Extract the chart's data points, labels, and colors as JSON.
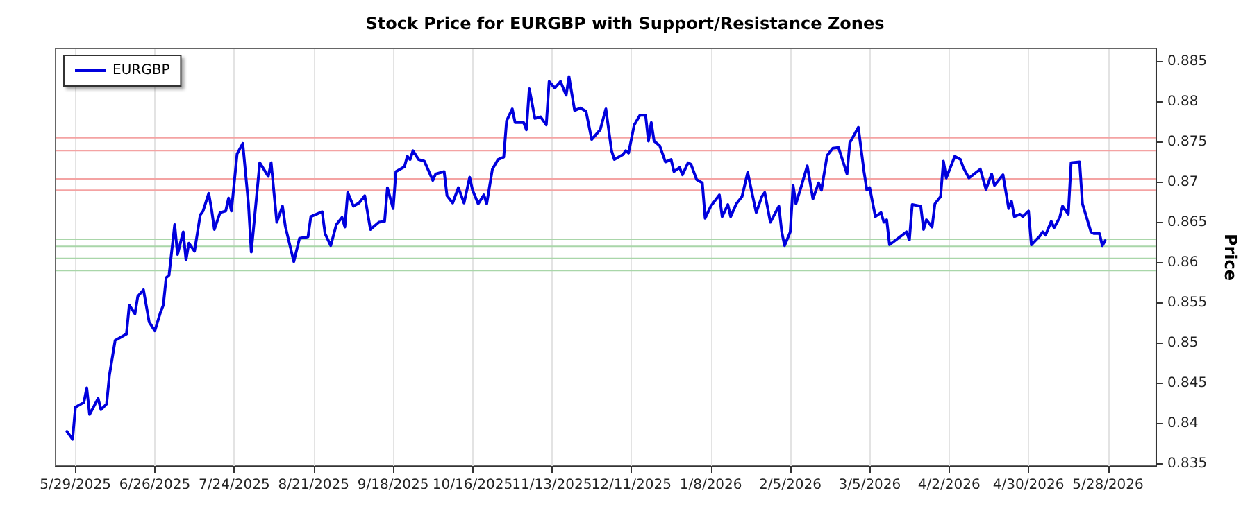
{
  "chart_data": {
    "type": "line",
    "title": "Stock Price for EURGBP with Support/Resistance Zones",
    "ylabel": "Price",
    "legend": "top left",
    "grid": "x",
    "line_style": "solid",
    "xlim": [
      "2025-05-22",
      "2026-06-14"
    ],
    "xticks": [
      {
        "value": "2025-05-29",
        "label": "5/29/2025"
      },
      {
        "value": "2025-06-26",
        "label": "6/26/2025"
      },
      {
        "value": "2025-07-24",
        "label": "7/24/2025"
      },
      {
        "value": "2025-08-21",
        "label": "8/21/2025"
      },
      {
        "value": "2025-09-18",
        "label": "9/18/2025"
      },
      {
        "value": "2025-10-16",
        "label": "10/16/2025"
      },
      {
        "value": "2025-11-13",
        "label": "11/13/2025"
      },
      {
        "value": "2025-12-11",
        "label": "12/11/2025"
      },
      {
        "value": "2026-01-08",
        "label": "1/8/2026"
      },
      {
        "value": "2026-02-05",
        "label": "2/5/2026"
      },
      {
        "value": "2026-03-05",
        "label": "3/5/2026"
      },
      {
        "value": "2026-04-02",
        "label": "4/2/2026"
      },
      {
        "value": "2026-04-30",
        "label": "4/30/2026"
      },
      {
        "value": "2026-05-28",
        "label": "5/28/2026"
      }
    ],
    "ylim": [
      0.8347,
      0.8866
    ],
    "yticks": [
      0.835,
      0.84,
      0.845,
      0.85,
      0.855,
      0.86,
      0.865,
      0.87,
      0.875,
      0.88,
      0.885
    ],
    "ref_lines": [
      {
        "axis": "y",
        "value": 0.8755,
        "color": "#f4a3a3"
      },
      {
        "axis": "y",
        "value": 0.8739,
        "color": "#f4a3a3"
      },
      {
        "axis": "y",
        "value": 0.8704,
        "color": "#f4a3a3"
      },
      {
        "axis": "y",
        "value": 0.869,
        "color": "#f4a3a3"
      },
      {
        "axis": "y",
        "value": 0.8629,
        "color": "#a9d6a9"
      },
      {
        "axis": "y",
        "value": 0.862,
        "color": "#a9d6a9"
      },
      {
        "axis": "y",
        "value": 0.8605,
        "color": "#a9d6a9"
      },
      {
        "axis": "y",
        "value": 0.859,
        "color": "#a9d6a9"
      }
    ],
    "x": [
      "2025-05-26",
      "2025-05-28",
      "2025-05-29",
      "2025-06-01",
      "2025-06-02",
      "2025-06-03",
      "2025-06-06",
      "2025-06-07",
      "2025-06-09",
      "2025-06-10",
      "2025-06-12",
      "2025-06-16",
      "2025-06-17",
      "2025-06-19",
      "2025-06-20",
      "2025-06-22",
      "2025-06-24",
      "2025-06-26",
      "2025-06-28",
      "2025-06-29",
      "2025-06-30",
      "2025-07-01",
      "2025-07-03",
      "2025-07-04",
      "2025-07-06",
      "2025-07-07",
      "2025-07-08",
      "2025-07-10",
      "2025-07-12",
      "2025-07-13",
      "2025-07-15",
      "2025-07-16",
      "2025-07-17",
      "2025-07-19",
      "2025-07-21",
      "2025-07-22",
      "2025-07-23",
      "2025-07-25",
      "2025-07-27",
      "2025-07-29",
      "2025-07-30",
      "2025-08-02",
      "2025-08-05",
      "2025-08-06",
      "2025-08-08",
      "2025-08-10",
      "2025-08-11",
      "2025-08-14",
      "2025-08-16",
      "2025-08-19",
      "2025-08-20",
      "2025-08-24",
      "2025-08-25",
      "2025-08-27",
      "2025-08-29",
      "2025-08-31",
      "2025-09-01",
      "2025-09-02",
      "2025-09-04",
      "2025-09-06",
      "2025-09-08",
      "2025-09-10",
      "2025-09-13",
      "2025-09-15",
      "2025-09-16",
      "2025-09-18",
      "2025-09-19",
      "2025-09-22",
      "2025-09-23",
      "2025-09-24",
      "2025-09-25",
      "2025-09-27",
      "2025-09-29",
      "2025-10-02",
      "2025-10-03",
      "2025-10-06",
      "2025-10-07",
      "2025-10-09",
      "2025-10-11",
      "2025-10-13",
      "2025-10-15",
      "2025-10-16",
      "2025-10-18",
      "2025-10-20",
      "2025-10-21",
      "2025-10-23",
      "2025-10-25",
      "2025-10-27",
      "2025-10-28",
      "2025-10-30",
      "2025-10-31",
      "2025-11-03",
      "2025-11-04",
      "2025-11-05",
      "2025-11-07",
      "2025-11-09",
      "2025-11-11",
      "2025-11-12",
      "2025-11-14",
      "2025-11-16",
      "2025-11-18",
      "2025-11-19",
      "2025-11-21",
      "2025-11-23",
      "2025-11-25",
      "2025-11-27",
      "2025-11-30",
      "2025-12-02",
      "2025-12-04",
      "2025-12-05",
      "2025-12-08",
      "2025-12-09",
      "2025-12-10",
      "2025-12-12",
      "2025-12-14",
      "2025-12-16",
      "2025-12-17",
      "2025-12-18",
      "2025-12-19",
      "2025-12-21",
      "2025-12-23",
      "2025-12-25",
      "2025-12-26",
      "2025-12-28",
      "2025-12-29",
      "2025-12-31",
      "2026-01-01",
      "2026-01-03",
      "2026-01-05",
      "2026-01-06",
      "2026-01-08",
      "2026-01-11",
      "2026-01-12",
      "2026-01-14",
      "2026-01-15",
      "2026-01-17",
      "2026-01-19",
      "2026-01-21",
      "2026-01-22",
      "2026-01-24",
      "2026-01-26",
      "2026-01-27",
      "2026-01-29",
      "2026-02-01",
      "2026-02-02",
      "2026-02-03",
      "2026-02-05",
      "2026-02-06",
      "2026-02-07",
      "2026-02-09",
      "2026-02-11",
      "2026-02-13",
      "2026-02-15",
      "2026-02-16",
      "2026-02-18",
      "2026-02-20",
      "2026-02-22",
      "2026-02-25",
      "2026-02-26",
      "2026-03-01",
      "2026-03-03",
      "2026-03-04",
      "2026-03-05",
      "2026-03-07",
      "2026-03-09",
      "2026-03-10",
      "2026-03-11",
      "2026-03-12",
      "2026-03-18",
      "2026-03-19",
      "2026-03-20",
      "2026-03-23",
      "2026-03-24",
      "2026-03-25",
      "2026-03-27",
      "2026-03-28",
      "2026-03-30",
      "2026-03-31",
      "2026-04-01",
      "2026-04-04",
      "2026-04-06",
      "2026-04-07",
      "2026-04-09",
      "2026-04-13",
      "2026-04-15",
      "2026-04-17",
      "2026-04-18",
      "2026-04-21",
      "2026-04-23",
      "2026-04-24",
      "2026-04-25",
      "2026-04-27",
      "2026-04-28",
      "2026-04-30",
      "2026-05-01",
      "2026-05-04",
      "2026-05-05",
      "2026-05-06",
      "2026-05-08",
      "2026-05-09",
      "2026-05-11",
      "2026-05-12",
      "2026-05-14",
      "2026-05-15",
      "2026-05-18",
      "2026-05-19",
      "2026-05-22",
      "2026-05-23",
      "2026-05-25",
      "2026-05-26",
      "2026-05-27"
    ],
    "series": [
      {
        "name": "EURGBP",
        "color": "#0000dd",
        "values": [
          0.839,
          0.838,
          0.842,
          0.8426,
          0.8444,
          0.8411,
          0.8431,
          0.8417,
          0.8424,
          0.846,
          0.8503,
          0.8511,
          0.8547,
          0.8536,
          0.8558,
          0.8566,
          0.8526,
          0.8515,
          0.8538,
          0.8547,
          0.8581,
          0.8584,
          0.8647,
          0.861,
          0.8638,
          0.8603,
          0.8624,
          0.8614,
          0.8659,
          0.8664,
          0.8686,
          0.8666,
          0.8641,
          0.8662,
          0.8664,
          0.868,
          0.8664,
          0.8735,
          0.8748,
          0.8673,
          0.8613,
          0.8724,
          0.8707,
          0.8724,
          0.865,
          0.867,
          0.8645,
          0.8601,
          0.863,
          0.8632,
          0.8657,
          0.8663,
          0.8636,
          0.8621,
          0.8647,
          0.8656,
          0.8644,
          0.8687,
          0.867,
          0.8674,
          0.8683,
          0.8641,
          0.865,
          0.8651,
          0.8693,
          0.8667,
          0.8713,
          0.8719,
          0.8732,
          0.8728,
          0.8739,
          0.8728,
          0.8726,
          0.8702,
          0.871,
          0.8713,
          0.8683,
          0.8674,
          0.8693,
          0.8674,
          0.8706,
          0.869,
          0.8673,
          0.8684,
          0.8673,
          0.8716,
          0.8728,
          0.8731,
          0.8776,
          0.8791,
          0.8774,
          0.8774,
          0.8765,
          0.8816,
          0.8779,
          0.8781,
          0.8771,
          0.8825,
          0.8817,
          0.8825,
          0.8808,
          0.8831,
          0.8789,
          0.8792,
          0.8788,
          0.8753,
          0.8765,
          0.8791,
          0.8739,
          0.8728,
          0.8734,
          0.8739,
          0.8736,
          0.8771,
          0.8783,
          0.8783,
          0.8751,
          0.8774,
          0.8751,
          0.8745,
          0.8725,
          0.8728,
          0.8713,
          0.8718,
          0.8709,
          0.8724,
          0.8722,
          0.8703,
          0.8699,
          0.8655,
          0.867,
          0.8684,
          0.8657,
          0.8672,
          0.8657,
          0.8673,
          0.8682,
          0.8712,
          0.8695,
          0.8662,
          0.8682,
          0.8687,
          0.865,
          0.867,
          0.8638,
          0.8621,
          0.8638,
          0.8696,
          0.8673,
          0.8696,
          0.872,
          0.8679,
          0.8699,
          0.869,
          0.8733,
          0.8742,
          0.8743,
          0.871,
          0.8749,
          0.8768,
          0.8713,
          0.869,
          0.8693,
          0.8657,
          0.8662,
          0.865,
          0.8653,
          0.8622,
          0.8638,
          0.8628,
          0.8672,
          0.867,
          0.8641,
          0.8653,
          0.8644,
          0.8673,
          0.8682,
          0.8726,
          0.8705,
          0.8732,
          0.8728,
          0.8718,
          0.8705,
          0.8716,
          0.8691,
          0.871,
          0.8696,
          0.8709,
          0.8667,
          0.8676,
          0.8657,
          0.866,
          0.8657,
          0.8664,
          0.8622,
          0.8633,
          0.8638,
          0.8634,
          0.8651,
          0.8643,
          0.8656,
          0.867,
          0.866,
          0.8724,
          0.8725,
          0.8673,
          0.8638,
          0.8636,
          0.8636,
          0.8621,
          0.8627
        ]
      }
    ]
  }
}
